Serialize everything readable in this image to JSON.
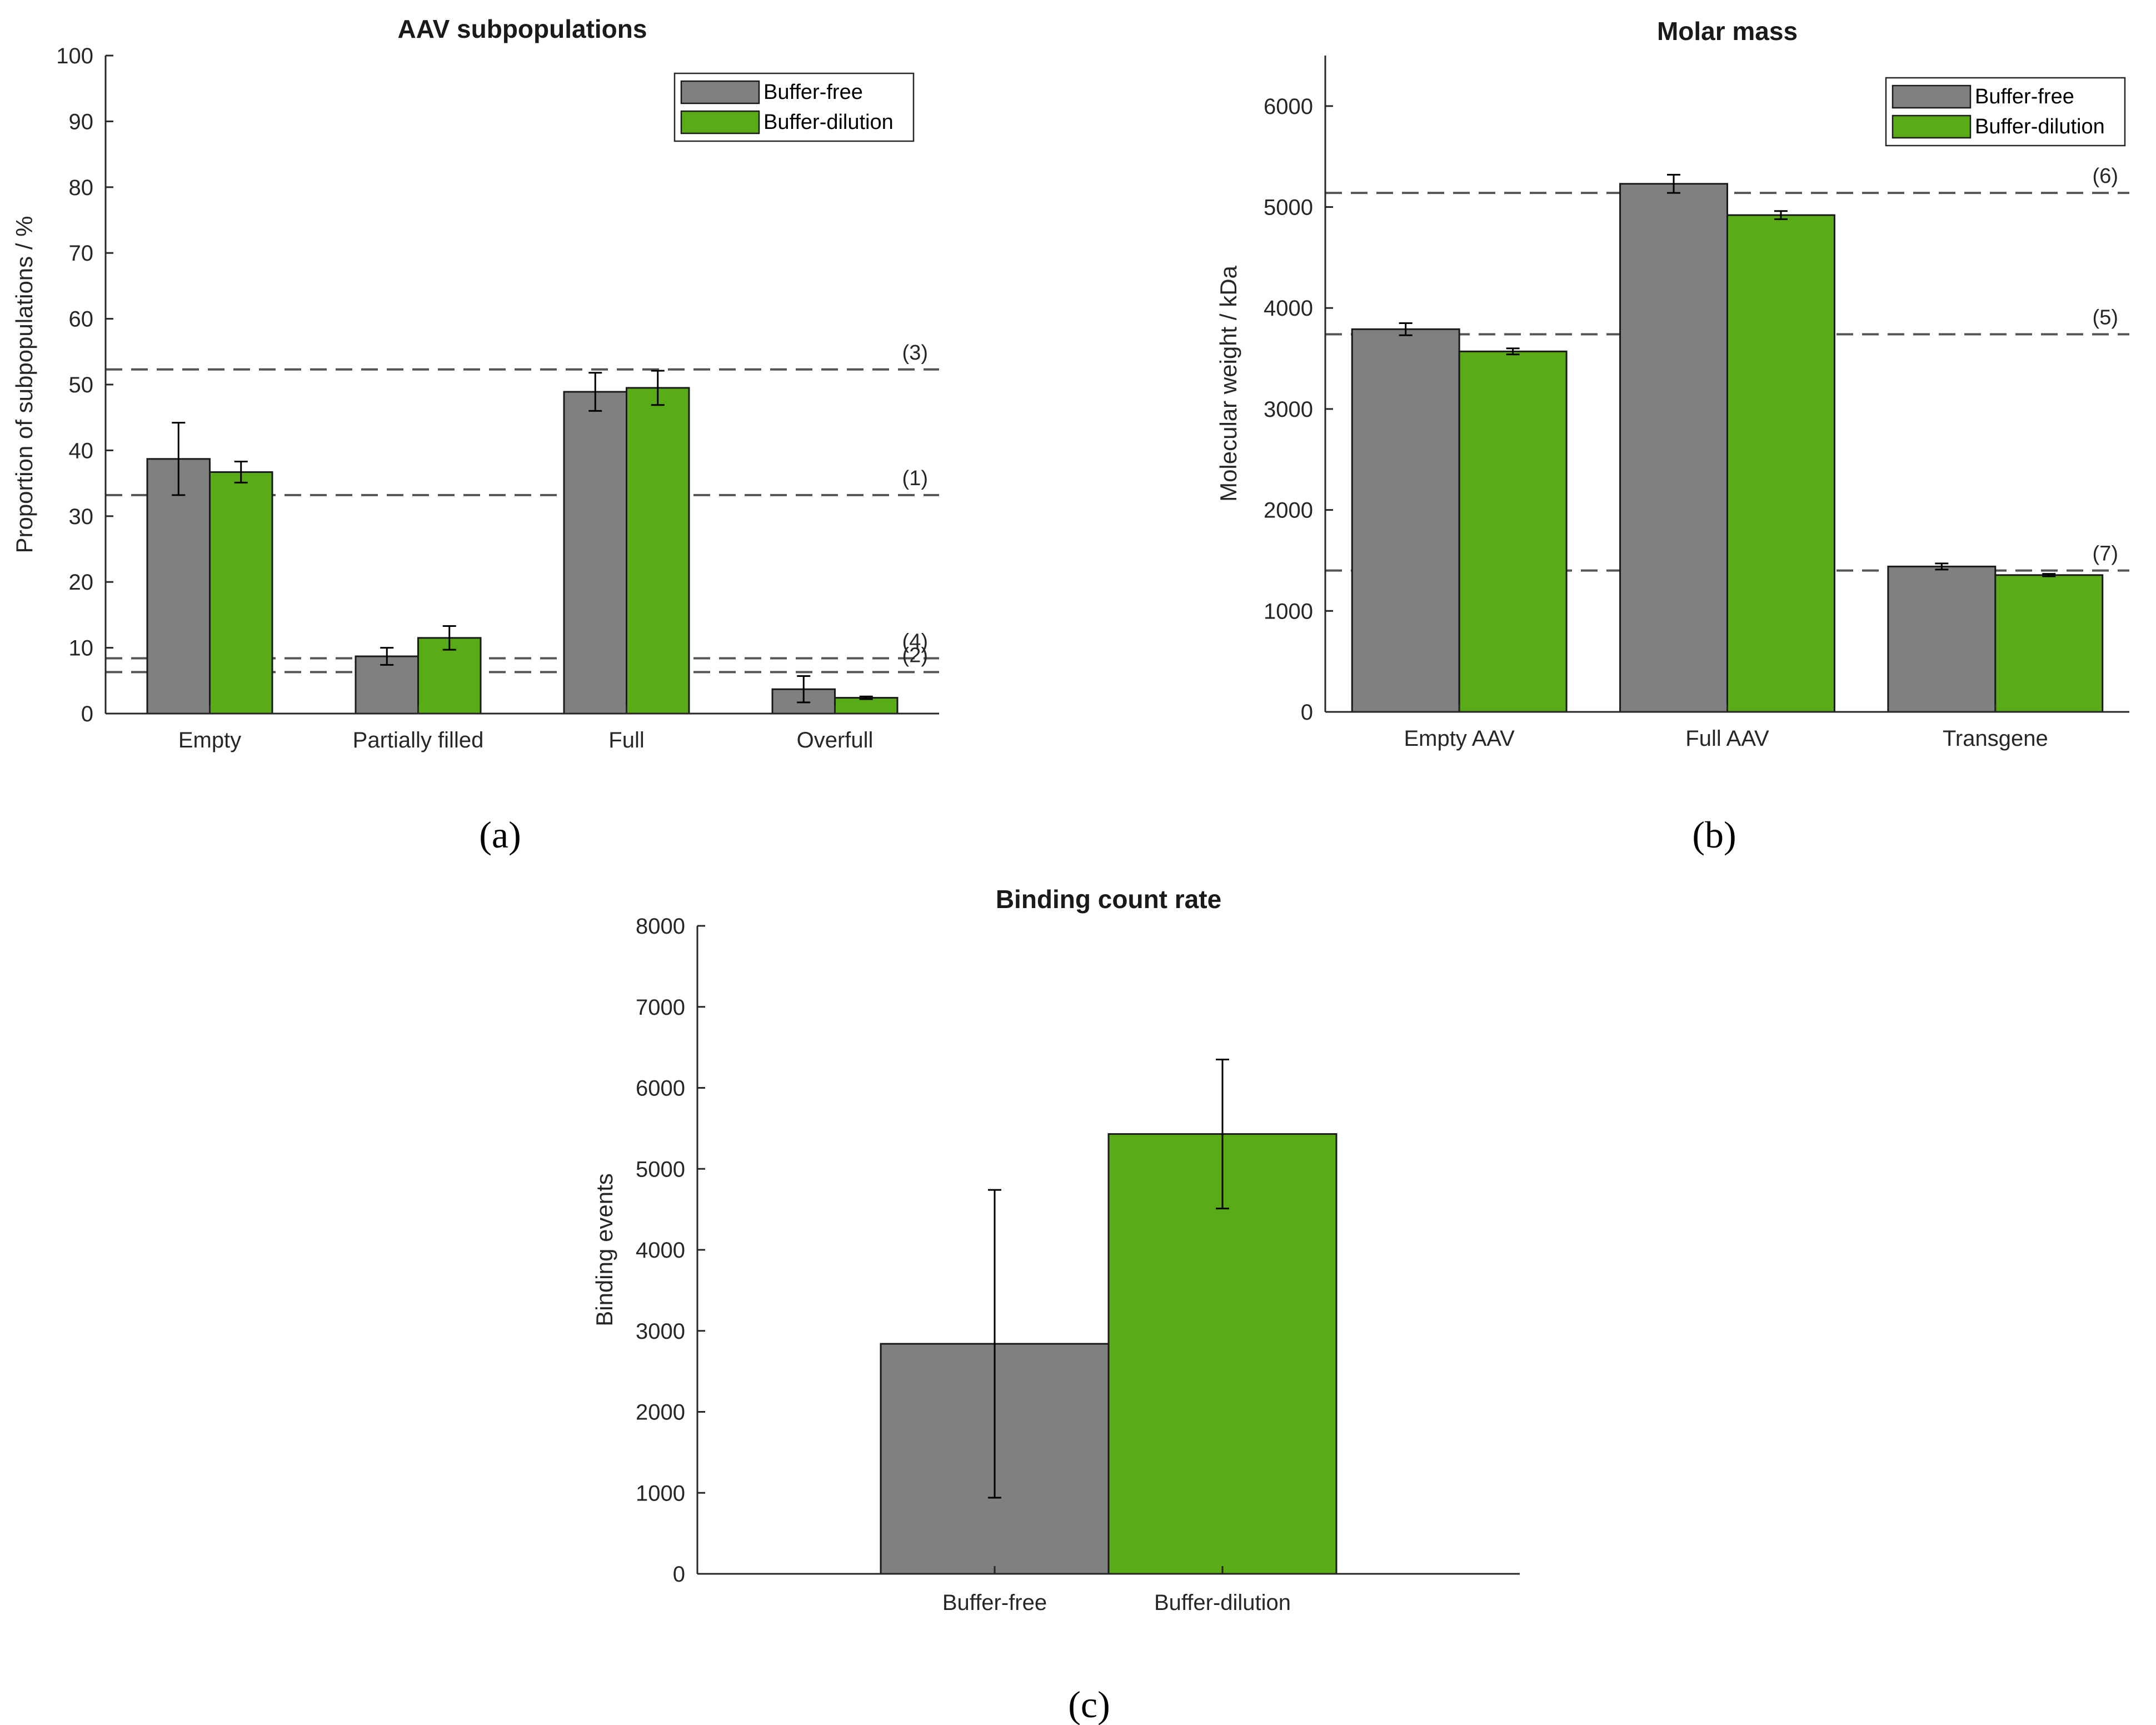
{
  "colors": {
    "buffer_free": "#808080",
    "buffer_dilution": "#5aab18",
    "ref_line": "#555555",
    "axis": "#262626"
  },
  "panel_labels": {
    "a": "(a)",
    "b": "(b)",
    "c": "(c)"
  },
  "chart_data": [
    {
      "type": "bar",
      "panel": "a",
      "title": "AAV subpopulations",
      "xlabel": "",
      "ylabel": "Proportion of subpopulations / %",
      "ylim": [
        0,
        100
      ],
      "yticks": [
        0,
        10,
        20,
        30,
        40,
        50,
        60,
        70,
        80,
        90,
        100
      ],
      "categories": [
        "Empty",
        "Partially filled",
        "Full",
        "Overfull"
      ],
      "series": [
        {
          "name": "Buffer-free",
          "color_key": "buffer_free",
          "values": [
            38.7,
            8.7,
            48.9,
            3.7
          ],
          "errors": [
            5.5,
            1.3,
            2.9,
            2.0
          ]
        },
        {
          "name": "Buffer-dilution",
          "color_key": "buffer_dilution",
          "values": [
            36.7,
            11.5,
            49.5,
            2.4
          ],
          "errors": [
            1.6,
            1.8,
            2.6,
            0.2
          ]
        }
      ],
      "reference_lines": [
        {
          "label": "(3)",
          "value": 52.3
        },
        {
          "label": "(1)",
          "value": 33.2
        },
        {
          "label": "(4)",
          "value": 8.4
        },
        {
          "label": "(2)",
          "value": 6.3
        }
      ],
      "legend": "top-right"
    },
    {
      "type": "bar",
      "panel": "b",
      "title": "Molar mass",
      "xlabel": "",
      "ylabel": "Molecular weight / kDa",
      "ylim": [
        0,
        6500
      ],
      "yticks": [
        0,
        1000,
        2000,
        3000,
        4000,
        5000,
        6000
      ],
      "categories": [
        "Empty AAV",
        "Full AAV",
        "Transgene"
      ],
      "series": [
        {
          "name": "Buffer-free",
          "color_key": "buffer_free",
          "values": [
            3790,
            5230,
            1440
          ],
          "errors": [
            60,
            90,
            30
          ]
        },
        {
          "name": "Buffer-dilution",
          "color_key": "buffer_dilution",
          "values": [
            3570,
            4920,
            1355
          ],
          "errors": [
            30,
            40,
            12
          ]
        }
      ],
      "reference_lines": [
        {
          "label": "(6)",
          "value": 5140
        },
        {
          "label": "(5)",
          "value": 3740
        },
        {
          "label": "(7)",
          "value": 1400
        }
      ],
      "legend": "top-right"
    },
    {
      "type": "bar",
      "panel": "c",
      "title": "Binding count rate",
      "xlabel": "",
      "ylabel": "Binding events",
      "ylim": [
        0,
        8000
      ],
      "yticks": [
        0,
        1000,
        2000,
        3000,
        4000,
        5000,
        6000,
        7000,
        8000
      ],
      "categories": [
        "Buffer-free",
        "Buffer-dilution"
      ],
      "series": [
        {
          "name": "Binding events",
          "values": [
            2840,
            5430
          ],
          "errors": [
            1900,
            920
          ],
          "color_keys": [
            "buffer_free",
            "buffer_dilution"
          ]
        }
      ],
      "legend": "none"
    }
  ]
}
